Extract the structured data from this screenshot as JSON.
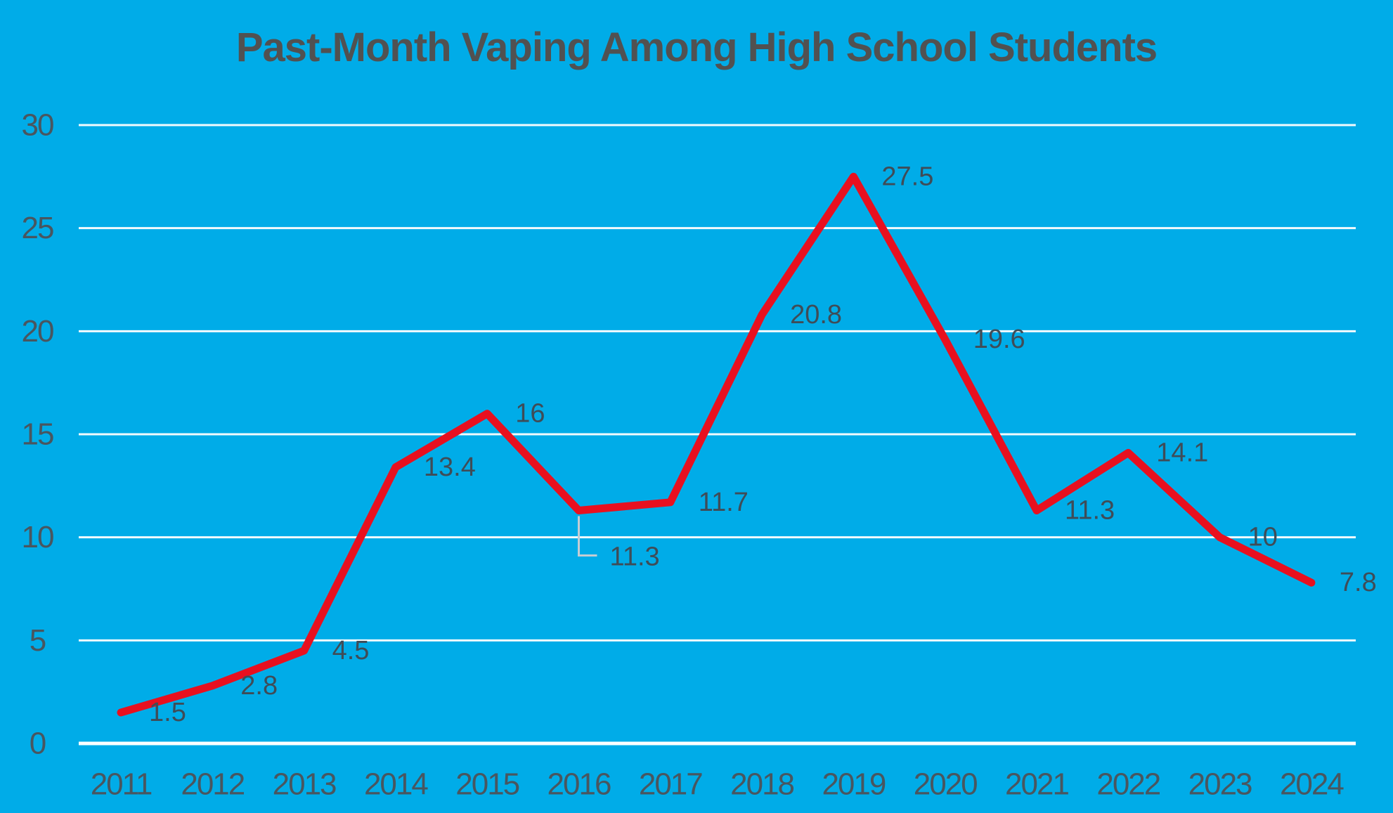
{
  "page": {
    "background": "#00ACE8"
  },
  "chart_data": {
    "type": "line",
    "title": "Past-Month Vaping Among High School Students",
    "categories": [
      "2011",
      "2012",
      "2013",
      "2014",
      "2015",
      "2016",
      "2017",
      "2018",
      "2019",
      "2020",
      "2021",
      "2022",
      "2023",
      "2024"
    ],
    "values": [
      1.5,
      2.8,
      4.5,
      13.4,
      16,
      11.3,
      11.7,
      20.8,
      27.5,
      19.6,
      11.3,
      14.1,
      10,
      7.8
    ],
    "data_labels": [
      "1.5",
      "2.8",
      "4.5",
      "13.4",
      "16",
      "11.3",
      "11.7",
      "20.8",
      "27.5",
      "19.6",
      "11.3",
      "14.1",
      "10",
      "7.8"
    ],
    "xlabel": "",
    "ylabel": "",
    "ylim": [
      0,
      30
    ],
    "ytick_interval": 5,
    "yticks": [
      "0",
      "5",
      "10",
      "15",
      "20",
      "25",
      "30"
    ],
    "grid": true,
    "legend": "none",
    "label_overrides": {
      "5": {
        "position": "below",
        "leader": true
      }
    },
    "colors": {
      "background": "#00ACE8",
      "line": "#E8101F",
      "gridline": "#F2FAFD",
      "axis_line": "#FFFFFF",
      "title_text": "#515151",
      "axis_text": "#49565F",
      "label_text": "#3F4C57",
      "leader_line": "#C4CDD3"
    }
  }
}
